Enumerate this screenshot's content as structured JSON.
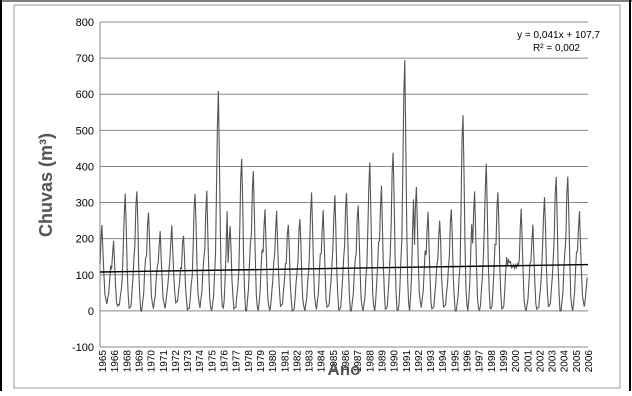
{
  "chart_data": {
    "type": "line",
    "title": "",
    "xlabel": "Ano",
    "ylabel": "Chuvas (m³)",
    "ylim": [
      -100,
      800
    ],
    "yticks": [
      -100,
      0,
      100,
      200,
      300,
      400,
      500,
      600,
      700,
      800
    ],
    "xlim": [
      1965,
      2006.9
    ],
    "xticks": [
      "1965",
      "1966",
      "1968",
      "1969",
      "1970",
      "1971",
      "1972",
      "1973",
      "1974",
      "1975",
      "1976",
      "1977",
      "1978",
      "1979",
      "1980",
      "1981",
      "1982",
      "1983",
      "1984",
      "1985",
      "1986",
      "1987",
      "1988",
      "1989",
      "1990",
      "1991",
      "1992",
      "1993",
      "1994",
      "1995",
      "1996",
      "1997",
      "1998",
      "1999",
      "2000",
      "2001",
      "2002",
      "2003",
      "2004",
      "2005",
      "2006"
    ],
    "grid": "horizontal",
    "equation": "y = 0,041x + 107,7",
    "r_squared": "R² = 0,002",
    "annual_peaks_mm": [
      230,
      190,
      325,
      335,
      280,
      215,
      235,
      210,
      330,
      325,
      605,
      235,
      425,
      395,
      275,
      275,
      240,
      260,
      320,
      275,
      320,
      330,
      300,
      405,
      345,
      440,
      700,
      335,
      270,
      250,
      285,
      550,
      325,
      405,
      330,
      140,
      275,
      235,
      315,
      375,
      380,
      270
    ],
    "annual_mins": [
      25,
      10,
      5,
      0,
      10,
      15,
      20,
      5,
      10,
      0,
      0,
      5,
      0,
      0,
      5,
      10,
      0,
      0,
      10,
      5,
      0,
      0,
      0,
      5,
      0,
      0,
      0,
      15,
      0,
      10,
      0,
      0,
      0,
      0,
      5,
      120,
      0,
      0,
      10,
      0,
      0,
      20
    ],
    "trendline": {
      "start": 107.7,
      "end": 128.3
    },
    "series_color": "#555555",
    "trend_color": "#000000"
  }
}
